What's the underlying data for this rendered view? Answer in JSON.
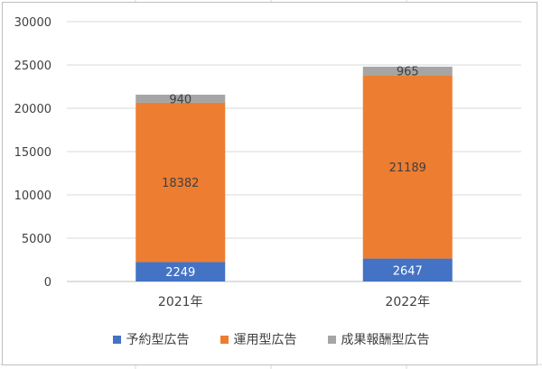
{
  "chart_data": {
    "type": "bar",
    "stacked": true,
    "categories": [
      "2021年",
      "2022年"
    ],
    "series": [
      {
        "name": "予約型広告",
        "values": [
          2249,
          2647
        ],
        "color": "#4472c4"
      },
      {
        "name": "運用型広告",
        "values": [
          18382,
          21189
        ],
        "color": "#ed7d31"
      },
      {
        "name": "成果報酬型広告",
        "values": [
          940,
          965
        ],
        "color": "#a5a5a5"
      }
    ],
    "ylim": [
      0,
      30000
    ],
    "yticks": [
      0,
      5000,
      10000,
      15000,
      20000,
      25000,
      30000
    ],
    "ytick_labels": [
      "0",
      "5000",
      "10000",
      "15000",
      "20000",
      "25000",
      "30000"
    ],
    "grid": true,
    "legend": "bottom",
    "title": "",
    "xlabel": "",
    "ylabel": ""
  }
}
